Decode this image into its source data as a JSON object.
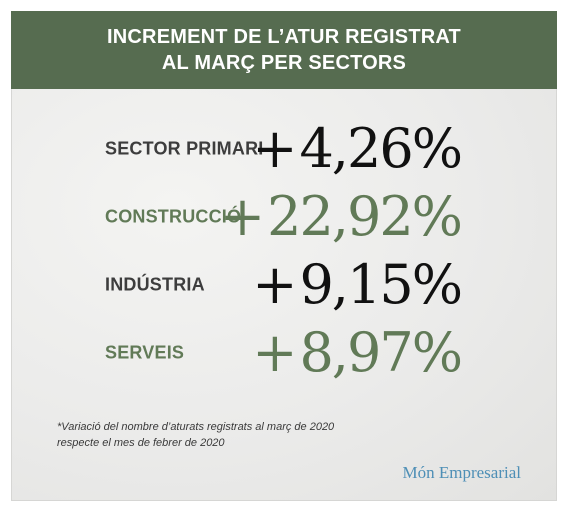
{
  "header": {
    "line1": "INCREMENT DE L’ATUR REGISTRAT",
    "line2": "AL MARÇ PER SECTORS"
  },
  "colors": {
    "header_bg": "#566c50",
    "dark": "#3d3d3d",
    "green": "#617a57",
    "black": "#111111",
    "brand": "#4e8fb6"
  },
  "chart_data": {
    "type": "table",
    "categories": [
      "SECTOR PRIMARI",
      "CONSTRUCCIÓ",
      "INDÚSTRIA",
      "SERVEIS"
    ],
    "values": [
      4.26,
      22.92,
      9.15,
      8.97
    ],
    "value_labels": [
      "+4,26%",
      "+22,92%",
      "+9,15%",
      "+8,97%"
    ]
  },
  "rows": [
    {
      "label": "SECTOR PRIMARI",
      "sign": "+",
      "number": "4,26%"
    },
    {
      "label": "CONSTRUCCIÓ",
      "sign": "+",
      "number": "22,92%"
    },
    {
      "label": "INDÚSTRIA",
      "sign": "+",
      "number": "9,15%"
    },
    {
      "label": "SERVEIS",
      "sign": "+",
      "number": "8,97%"
    }
  ],
  "footnote": {
    "line1": "*Variació del nombre d’aturats registrats al març de 2020",
    "line2": "respecte el mes de febrer de 2020"
  },
  "brand": "Món Empresarial"
}
